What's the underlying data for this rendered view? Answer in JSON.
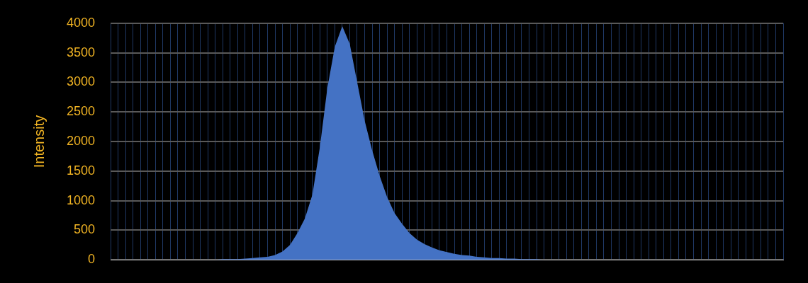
{
  "chart_data": {
    "type": "area",
    "ylabel": "Intensity",
    "categories": [
      null,
      null,
      null,
      null,
      null,
      null,
      null,
      null,
      null,
      null,
      null,
      null,
      null,
      null,
      null,
      null,
      null,
      null,
      null,
      null,
      null,
      null,
      null,
      null,
      null,
      null,
      null,
      null,
      null,
      null,
      null,
      null,
      null,
      null,
      null,
      null,
      null,
      null,
      null,
      null,
      null,
      null,
      null,
      null,
      null,
      null,
      null,
      null,
      null,
      null,
      null,
      null,
      null,
      null,
      null,
      null,
      null,
      null,
      null,
      null,
      null,
      null,
      null,
      null,
      null,
      null,
      null,
      null,
      null,
      null,
      null,
      null,
      null,
      null,
      null,
      null,
      null,
      null,
      null,
      null,
      null,
      null,
      null,
      null,
      null,
      null,
      null,
      null,
      null,
      null,
      null
    ],
    "series": [
      {
        "color": "#4472c4",
        "values": [
          0,
          0,
          0,
          0,
          0,
          0,
          0,
          0,
          0,
          0,
          0,
          0,
          0,
          0,
          0,
          10,
          10,
          10,
          20,
          30,
          40,
          50,
          80,
          140,
          250,
          450,
          700,
          1100,
          1900,
          2900,
          3600,
          3950,
          3650,
          3000,
          2350,
          1850,
          1420,
          1060,
          790,
          610,
          450,
          340,
          265,
          210,
          160,
          130,
          100,
          80,
          70,
          50,
          40,
          30,
          30,
          20,
          20,
          10,
          10,
          10,
          0,
          0,
          0,
          0,
          0,
          0,
          0,
          0,
          0,
          0,
          0,
          0,
          0,
          0,
          0,
          0,
          0,
          0,
          0,
          0,
          0,
          0,
          0,
          0,
          0,
          0,
          0,
          0,
          0,
          0,
          0,
          0,
          0
        ]
      }
    ],
    "ylim": [
      0,
      4000
    ],
    "yticks": [
      0,
      500,
      1000,
      1500,
      2000,
      2500,
      3000,
      3500,
      4000
    ],
    "grid": true,
    "legend": false,
    "marker": "none",
    "tick_labels": "y"
  }
}
